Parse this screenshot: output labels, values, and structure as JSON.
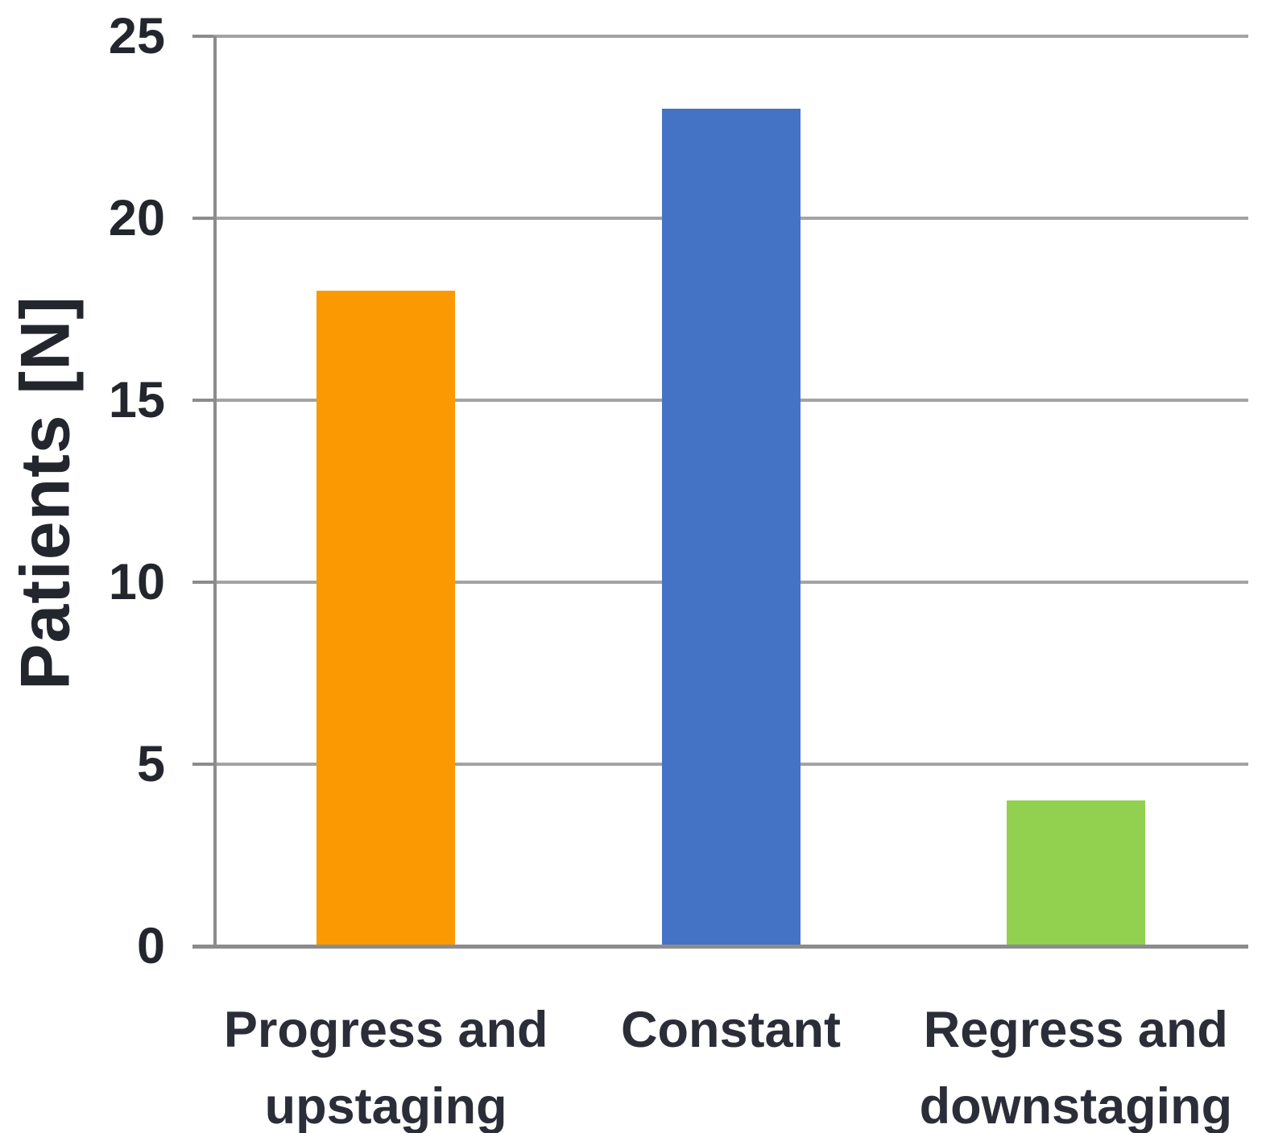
{
  "figure": {
    "y_axis_title": "Patients [N]"
  },
  "chart_data": {
    "type": "bar",
    "title": "",
    "categories": [
      "Progress and upstaging",
      "Constant",
      "Regress and downstaging"
    ],
    "values": [
      18,
      23,
      4
    ],
    "bar_colors": [
      "#FB9902",
      "#4472C4",
      "#92D050"
    ],
    "xlabel": "",
    "ylabel": "Patients [N]",
    "ylim": [
      0,
      25
    ],
    "yticks": [
      0,
      5,
      10,
      15,
      20,
      25
    ],
    "grid": "horizontal",
    "legend_position": "none"
  },
  "colors": {
    "gridline": "#a3a3a3",
    "axis": "#8c8c8c",
    "text": "#24262e",
    "background": "#ffffff"
  }
}
